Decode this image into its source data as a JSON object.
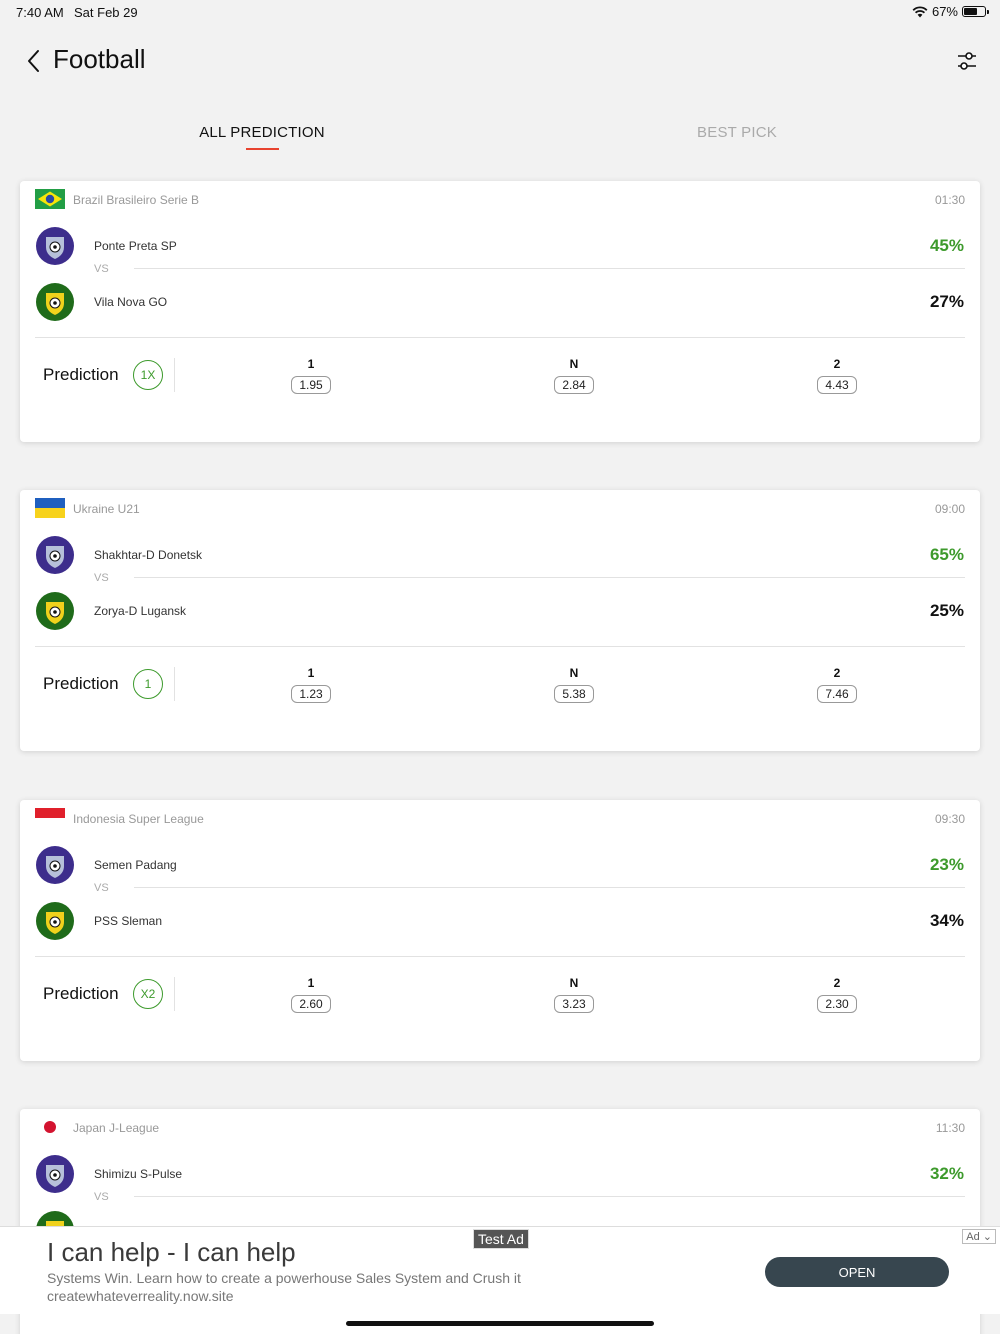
{
  "status": {
    "time": "7:40 AM",
    "date": "Sat Feb 29",
    "battery": "67%",
    "battery_level": 0.67
  },
  "header": {
    "title": "Football"
  },
  "tabs": [
    {
      "label": "ALL PREDICTION",
      "active": true
    },
    {
      "label": "BEST PICK",
      "active": false
    }
  ],
  "labels": {
    "vs": "VS",
    "prediction": "Prediction",
    "odd_home": "1",
    "odd_draw": "N",
    "odd_away": "2"
  },
  "matches": [
    {
      "league": "Brazil Brasileiro Serie B",
      "flag_icon": "brazil-flag",
      "time": "01:30",
      "home": {
        "name": "Ponte Preta SP",
        "pct": "45%"
      },
      "away": {
        "name": "Vila Nova GO",
        "pct": "27%"
      },
      "prediction": "1X",
      "odds": {
        "home": "1.95",
        "draw": "2.84",
        "away": "4.43"
      }
    },
    {
      "league": "Ukraine U21",
      "flag_icon": "ukraine-flag",
      "time": "09:00",
      "home": {
        "name": "Shakhtar-D Donetsk",
        "pct": "65%"
      },
      "away": {
        "name": "Zorya-D Lugansk",
        "pct": "25%"
      },
      "prediction": "1",
      "odds": {
        "home": "1.23",
        "draw": "5.38",
        "away": "7.46"
      }
    },
    {
      "league": "Indonesia Super League",
      "flag_icon": "indonesia-flag",
      "time": "09:30",
      "home": {
        "name": "Semen Padang",
        "pct": "23%"
      },
      "away": {
        "name": "PSS Sleman",
        "pct": "34%"
      },
      "prediction": "X2",
      "odds": {
        "home": "2.60",
        "draw": "3.23",
        "away": "2.30"
      }
    },
    {
      "league": "Japan J-League",
      "flag_icon": "japan-flag",
      "time": "11:30",
      "home": {
        "name": "Shimizu S-Pulse",
        "pct": "32%"
      }
    }
  ],
  "ad": {
    "label": "Test Ad",
    "choice": "Ad",
    "title": "I can help - I can help",
    "description": "Systems Win. Learn how to create a powerhouse Sales System and Crush it",
    "url": "createwhateverreality.now.site",
    "cta": "OPEN"
  },
  "colors": {
    "accent": "#e8432f",
    "green": "#3d9a2c",
    "ad_button": "#37464f"
  }
}
